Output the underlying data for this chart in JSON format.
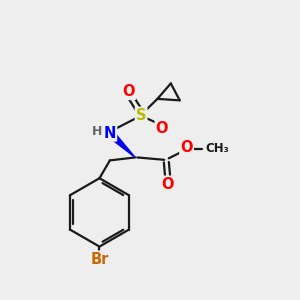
{
  "bg_color": "#eeeeee",
  "bond_color": "#1a1a1a",
  "bond_lw": 1.6,
  "atom_colors": {
    "O": "#ff0000",
    "N": "#0000ee",
    "S": "#bbbb00",
    "Br": "#cc6600",
    "H": "#666666",
    "C": "#1a1a1a"
  },
  "font_size_atom": 10.5,
  "font_size_small": 9.0,
  "font_size_ch3": 8.5
}
